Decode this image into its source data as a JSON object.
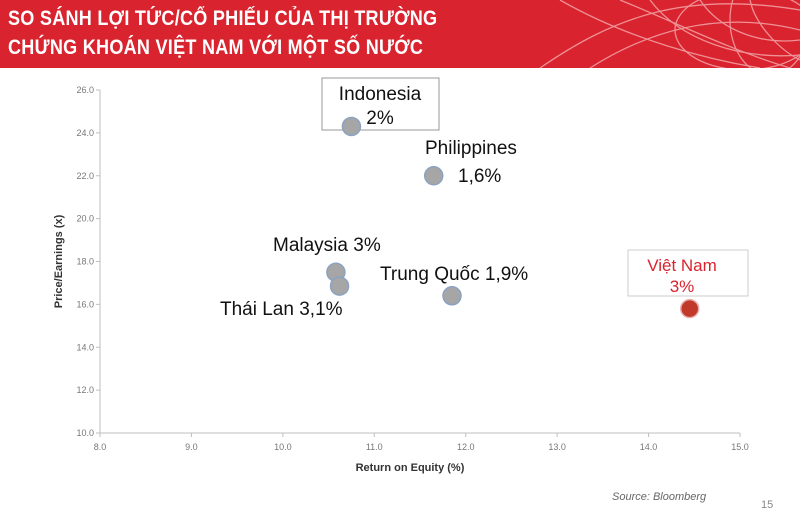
{
  "header": {
    "title_line1": "SO SÁNH LỢI TỨC/CỔ PHIẾU CỦA THỊ TRƯỜNG",
    "title_line2": "CHỨNG KHOÁN VIỆT NAM VỚI MỘT SỐ NƯỚC"
  },
  "colors": {
    "banner": "#d9232e",
    "point": "#a6a6a6",
    "point_stroke": "#8ba2c2",
    "highlight_point": "#c0392b",
    "highlight_text": "#d9232e"
  },
  "chart_data": {
    "type": "scatter",
    "xlabel": "Return on Equity (%)",
    "ylabel": "Price/Earnings (x)",
    "xlim": [
      8.0,
      15.0
    ],
    "ylim": [
      10.0,
      26.0
    ],
    "x_ticks": [
      "8.0",
      "9.0",
      "10.0",
      "11.0",
      "12.0",
      "13.0",
      "14.0",
      "15.0"
    ],
    "y_ticks": [
      "10.0",
      "12.0",
      "14.0",
      "16.0",
      "18.0",
      "20.0",
      "22.0",
      "24.0",
      "26.0"
    ],
    "grid": false,
    "points": [
      {
        "label": "Indonesia",
        "sublabel": "2%",
        "x": 10.75,
        "y": 24.3
      },
      {
        "label": "Philippines",
        "sublabel": "1,6%",
        "x": 11.65,
        "y": 22.0
      },
      {
        "label": "Malaysia 3%",
        "sublabel": "",
        "x": 10.58,
        "y": 17.5
      },
      {
        "label": "Thái Lan 3,1%",
        "sublabel": "",
        "x": 10.62,
        "y": 16.85
      },
      {
        "label": "Trung Quốc 1,9%",
        "sublabel": "",
        "x": 11.85,
        "y": 16.4
      },
      {
        "label": "Việt Nam",
        "sublabel": "3%",
        "x": 14.45,
        "y": 15.8,
        "highlight": true
      }
    ]
  },
  "footer": {
    "source": "Source: Bloomberg",
    "page_number": "15"
  }
}
